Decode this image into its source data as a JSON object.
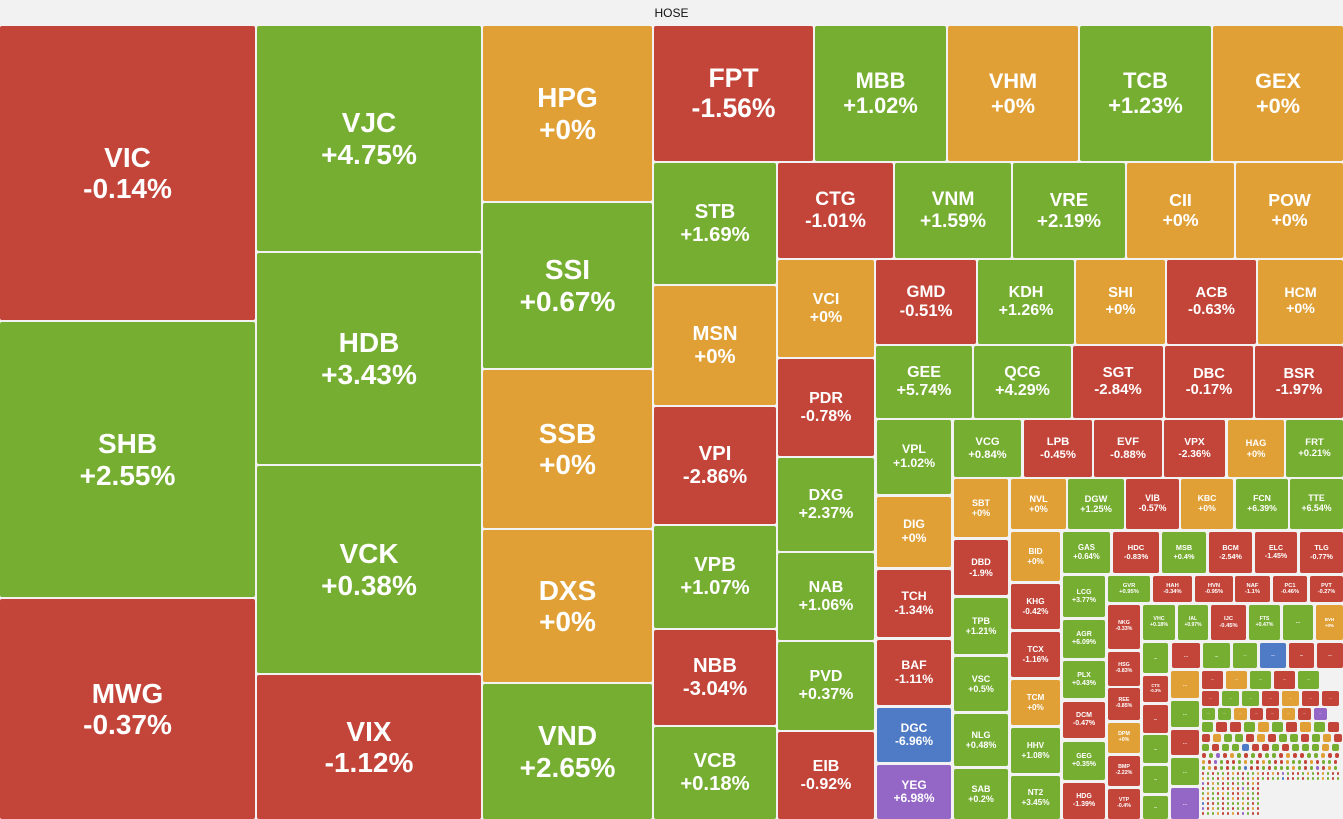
{
  "title": "HOSE",
  "colors": {
    "up": "#76ae32",
    "down": "#c3453a",
    "ref": "#e0a035",
    "floor": "#4f7bc6",
    "ceiling": "#9466c6",
    "background": "#f2f2f2"
  },
  "ellipsis": "...",
  "cells": [
    {
      "ticker": "VIC",
      "change": "-0.14%",
      "status": "down"
    },
    {
      "ticker": "SHB",
      "change": "+2.55%",
      "status": "up"
    },
    {
      "ticker": "MWG",
      "change": "-0.37%",
      "status": "down"
    },
    {
      "ticker": "VJC",
      "change": "+4.75%",
      "status": "up"
    },
    {
      "ticker": "HDB",
      "change": "+3.43%",
      "status": "up"
    },
    {
      "ticker": "VCK",
      "change": "+0.38%",
      "status": "up"
    },
    {
      "ticker": "VIX",
      "change": "-1.12%",
      "status": "down"
    },
    {
      "ticker": "HPG",
      "change": "+0%",
      "status": "ref"
    },
    {
      "ticker": "SSI",
      "change": "+0.67%",
      "status": "up"
    },
    {
      "ticker": "SSB",
      "change": "+0%",
      "status": "ref"
    },
    {
      "ticker": "DXS",
      "change": "+0%",
      "status": "ref"
    },
    {
      "ticker": "VND",
      "change": "+2.65%",
      "status": "up"
    },
    {
      "ticker": "FPT",
      "change": "-1.56%",
      "status": "down"
    },
    {
      "ticker": "MBB",
      "change": "+1.02%",
      "status": "up"
    },
    {
      "ticker": "VHM",
      "change": "+0%",
      "status": "ref"
    },
    {
      "ticker": "TCB",
      "change": "+1.23%",
      "status": "up"
    },
    {
      "ticker": "GEX",
      "change": "+0%",
      "status": "ref"
    },
    {
      "ticker": "STB",
      "change": "+1.69%",
      "status": "up"
    },
    {
      "ticker": "MSN",
      "change": "+0%",
      "status": "ref"
    },
    {
      "ticker": "VPI",
      "change": "-2.86%",
      "status": "down"
    },
    {
      "ticker": "VPB",
      "change": "+1.07%",
      "status": "up"
    },
    {
      "ticker": "NBB",
      "change": "-3.04%",
      "status": "down"
    },
    {
      "ticker": "VCB",
      "change": "+0.18%",
      "status": "up"
    },
    {
      "ticker": "CTG",
      "change": "-1.01%",
      "status": "down"
    },
    {
      "ticker": "VNM",
      "change": "+1.59%",
      "status": "up"
    },
    {
      "ticker": "VRE",
      "change": "+2.19%",
      "status": "up"
    },
    {
      "ticker": "CII",
      "change": "+0%",
      "status": "ref"
    },
    {
      "ticker": "POW",
      "change": "+0%",
      "status": "ref"
    },
    {
      "ticker": "VCI",
      "change": "+0%",
      "status": "ref"
    },
    {
      "ticker": "PDR",
      "change": "-0.78%",
      "status": "down"
    },
    {
      "ticker": "DXG",
      "change": "+2.37%",
      "status": "up"
    },
    {
      "ticker": "NAB",
      "change": "+1.06%",
      "status": "up"
    },
    {
      "ticker": "PVD",
      "change": "+0.37%",
      "status": "up"
    },
    {
      "ticker": "EIB",
      "change": "-0.92%",
      "status": "down"
    },
    {
      "ticker": "GMD",
      "change": "-0.51%",
      "status": "down"
    },
    {
      "ticker": "KDH",
      "change": "+1.26%",
      "status": "up"
    },
    {
      "ticker": "SHI",
      "change": "+0%",
      "status": "ref"
    },
    {
      "ticker": "ACB",
      "change": "-0.63%",
      "status": "down"
    },
    {
      "ticker": "HCM",
      "change": "+0%",
      "status": "ref"
    },
    {
      "ticker": "GEE",
      "change": "+5.74%",
      "status": "up"
    },
    {
      "ticker": "QCG",
      "change": "+4.29%",
      "status": "up"
    },
    {
      "ticker": "SGT",
      "change": "-2.84%",
      "status": "down"
    },
    {
      "ticker": "DBC",
      "change": "-0.17%",
      "status": "down"
    },
    {
      "ticker": "BSR",
      "change": "-1.97%",
      "status": "down"
    },
    {
      "ticker": "VPL",
      "change": "+1.02%",
      "status": "up"
    },
    {
      "ticker": "VCG",
      "change": "+0.84%",
      "status": "up"
    },
    {
      "ticker": "LPB",
      "change": "-0.45%",
      "status": "down"
    },
    {
      "ticker": "EVF",
      "change": "-0.88%",
      "status": "down"
    },
    {
      "ticker": "VPX",
      "change": "-2.36%",
      "status": "down"
    },
    {
      "ticker": "HAG",
      "change": "+0%",
      "status": "ref"
    },
    {
      "ticker": "FRT",
      "change": "+0.21%",
      "status": "up"
    },
    {
      "ticker": "SBT",
      "change": "+0%",
      "status": "ref"
    },
    {
      "ticker": "NVL",
      "change": "+0%",
      "status": "ref"
    },
    {
      "ticker": "DGW",
      "change": "+1.25%",
      "status": "up"
    },
    {
      "ticker": "VIB",
      "change": "-0.57%",
      "status": "down"
    },
    {
      "ticker": "KBC",
      "change": "+0%",
      "status": "ref"
    },
    {
      "ticker": "FCN",
      "change": "+6.39%",
      "status": "up"
    },
    {
      "ticker": "TTE",
      "change": "+6.54%",
      "status": "up"
    },
    {
      "ticker": "DIG",
      "change": "+0%",
      "status": "ref"
    },
    {
      "ticker": "TCH",
      "change": "-1.34%",
      "status": "down"
    },
    {
      "ticker": "BAF",
      "change": "-1.11%",
      "status": "down"
    },
    {
      "ticker": "DGC",
      "change": "-6.96%",
      "status": "floor"
    },
    {
      "ticker": "YEG",
      "change": "+6.98%",
      "status": "ceiling"
    },
    {
      "ticker": "DBD",
      "change": "-1.9%",
      "status": "down"
    },
    {
      "ticker": "TPB",
      "change": "+1.21%",
      "status": "up"
    },
    {
      "ticker": "VSC",
      "change": "+0.5%",
      "status": "up"
    },
    {
      "ticker": "NLG",
      "change": "+0.48%",
      "status": "up"
    },
    {
      "ticker": "SAB",
      "change": "+0.2%",
      "status": "up"
    },
    {
      "ticker": "BID",
      "change": "+0%",
      "status": "ref"
    },
    {
      "ticker": "KHG",
      "change": "-0.42%",
      "status": "down"
    },
    {
      "ticker": "TCX",
      "change": "-1.16%",
      "status": "down"
    },
    {
      "ticker": "TCM",
      "change": "+0%",
      "status": "ref"
    },
    {
      "ticker": "HHV",
      "change": "+1.08%",
      "status": "up"
    },
    {
      "ticker": "NT2",
      "change": "+3.45%",
      "status": "up"
    },
    {
      "ticker": "GAS",
      "change": "+0.64%",
      "status": "up"
    },
    {
      "ticker": "HDC",
      "change": "-0.83%",
      "status": "down"
    },
    {
      "ticker": "MSB",
      "change": "+0.4%",
      "status": "up"
    },
    {
      "ticker": "BCM",
      "change": "-2.54%",
      "status": "down"
    },
    {
      "ticker": "ELC",
      "change": "-1.45%",
      "status": "down"
    },
    {
      "ticker": "TLG",
      "change": "-0.77%",
      "status": "down"
    },
    {
      "ticker": "LCG",
      "change": "+3.77%",
      "status": "up"
    },
    {
      "ticker": "GVR",
      "change": "+0.95%",
      "status": "up"
    },
    {
      "ticker": "HAH",
      "change": "-0.34%",
      "status": "down"
    },
    {
      "ticker": "HVN",
      "change": "-0.95%",
      "status": "down"
    },
    {
      "ticker": "NAF",
      "change": "-1.1%",
      "status": "down"
    },
    {
      "ticker": "PC1",
      "change": "-0.46%",
      "status": "down"
    },
    {
      "ticker": "PVT",
      "change": "-0.27%",
      "status": "down"
    },
    {
      "ticker": "AGR",
      "change": "+6.09%",
      "status": "up"
    },
    {
      "ticker": "PLX",
      "change": "+0.43%",
      "status": "up"
    },
    {
      "ticker": "DCM",
      "change": "-0.47%",
      "status": "down"
    },
    {
      "ticker": "GEG",
      "change": "+0.35%",
      "status": "up"
    },
    {
      "ticker": "HDG",
      "change": "-1.39%",
      "status": "down"
    },
    {
      "ticker": "NKG",
      "change": "-0.33%",
      "status": "down"
    },
    {
      "ticker": "HSG",
      "change": "-0.83%",
      "status": "down"
    },
    {
      "ticker": "REE",
      "change": "-0.85%",
      "status": "down"
    },
    {
      "ticker": "DPM",
      "change": "+0%",
      "status": "ref"
    },
    {
      "ticker": "BMP",
      "change": "-2.22%",
      "status": "down"
    },
    {
      "ticker": "VTP",
      "change": "-0.4%",
      "status": "down"
    },
    {
      "ticker": "VHC",
      "change": "+0.18%",
      "status": "up"
    },
    {
      "ticker": "IAL",
      "change": "+0.97%",
      "status": "up"
    },
    {
      "ticker": "IJC",
      "change": "-0.45%",
      "status": "down"
    },
    {
      "ticker": "FTS",
      "change": "+0.47%",
      "status": "up"
    },
    {
      "ticker": "BVH",
      "change": "+0%",
      "status": "ref"
    },
    {
      "ticker": "CTS",
      "change": "-0.3%",
      "status": "down"
    }
  ],
  "small_cell_statuses": [
    "up",
    "down",
    "up",
    "up",
    "floor",
    "down",
    "down",
    "up",
    "down",
    "up",
    "up",
    "up",
    "ref",
    "up",
    "down",
    "up",
    "ceiling",
    "down",
    "ref",
    "up",
    "down",
    "up",
    "down",
    "up",
    "up",
    "down",
    "ref",
    "down",
    "down",
    "up",
    "up",
    "ref",
    "down",
    "down",
    "ref",
    "down",
    "ceiling",
    "up",
    "down",
    "down",
    "up",
    "ref",
    "up",
    "down",
    "ref",
    "up",
    "down",
    "down",
    "ref",
    "up",
    "up",
    "down",
    "ref",
    "down",
    "up",
    "up",
    "down",
    "up",
    "ref",
    "down"
  ]
}
